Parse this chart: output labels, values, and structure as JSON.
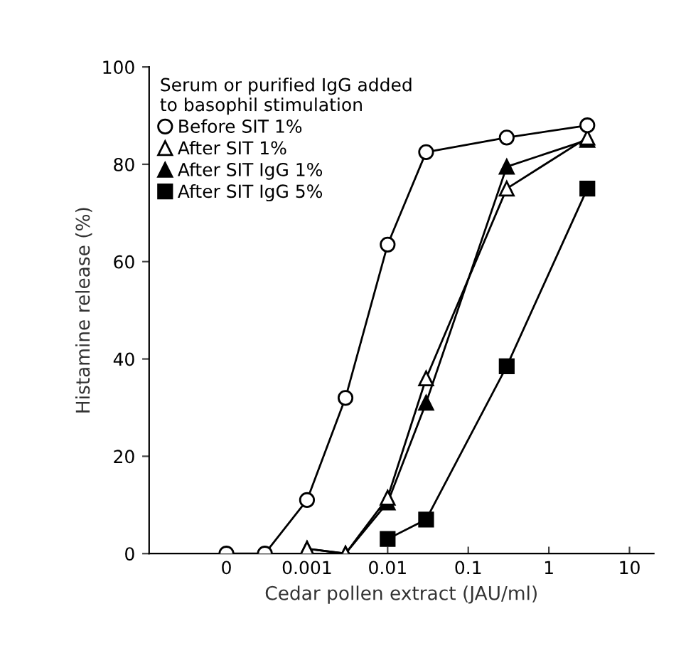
{
  "chart_data": {
    "type": "line",
    "xlabel": "Cedar pollen extract (JAU/ml)",
    "ylabel": "Histamine release (%)",
    "legend_title": "Serum or purified IgG added\nto basophil stimulation",
    "log": "x",
    "x": [
      0.0001,
      0.0003,
      0.001,
      0.003,
      0.01,
      0.03,
      0.3,
      3
    ],
    "xlim": [
      1.1e-05,
      20
    ],
    "xticks": [
      {
        "value": 0.0001,
        "label": "0"
      },
      0.001,
      0.01,
      0.1,
      1,
      10
    ],
    "ylim": [
      0,
      100
    ],
    "yticks": [
      0,
      20,
      40,
      60,
      80,
      100
    ],
    "grid": false,
    "legend": "top left",
    "series": [
      {
        "name": "Before SIT 1%",
        "color": "#ffffff",
        "marker": "circle",
        "values": [
          0,
          0,
          11,
          32,
          63.5,
          82.5,
          85.5,
          88
        ]
      },
      {
        "name": "After SIT 1%",
        "color": "#ffffff",
        "marker": "triangle",
        "values": [
          null,
          null,
          1,
          0,
          11.5,
          36,
          75,
          85.5
        ]
      },
      {
        "name": "After SIT IgG 1%",
        "color": "#000000",
        "marker": "triangle",
        "values": [
          null,
          null,
          1,
          0,
          10.5,
          31,
          79.5,
          85
        ]
      },
      {
        "name": "After SIT IgG 5%",
        "color": "#000000",
        "marker": "square",
        "values": [
          null,
          null,
          null,
          null,
          3,
          7,
          38.5,
          75
        ]
      }
    ]
  }
}
